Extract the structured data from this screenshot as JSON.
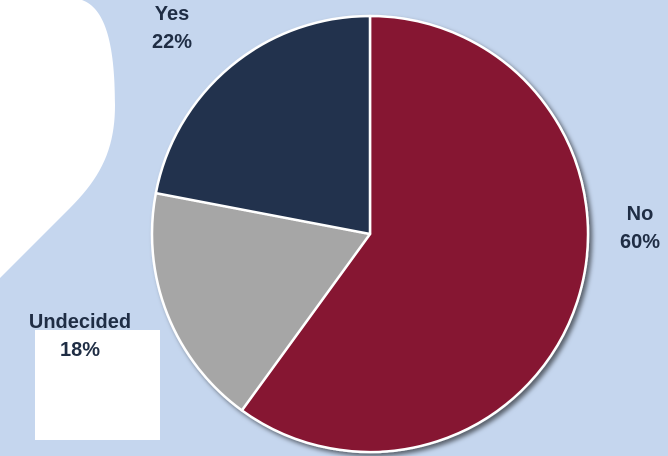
{
  "chart_data": {
    "type": "pie",
    "title": "",
    "categories": [
      "No",
      "Undecided",
      "Yes"
    ],
    "values": [
      60,
      18,
      22
    ],
    "value_labels": [
      "60%",
      "18%",
      "22%"
    ],
    "colors": [
      "#861631",
      "#a6a6a6",
      "#22334d"
    ],
    "start": "top, clockwise",
    "legend": "none (labels beside slices)"
  },
  "style": {
    "background": "#c5d6ee",
    "decoration": "#ffffff"
  }
}
